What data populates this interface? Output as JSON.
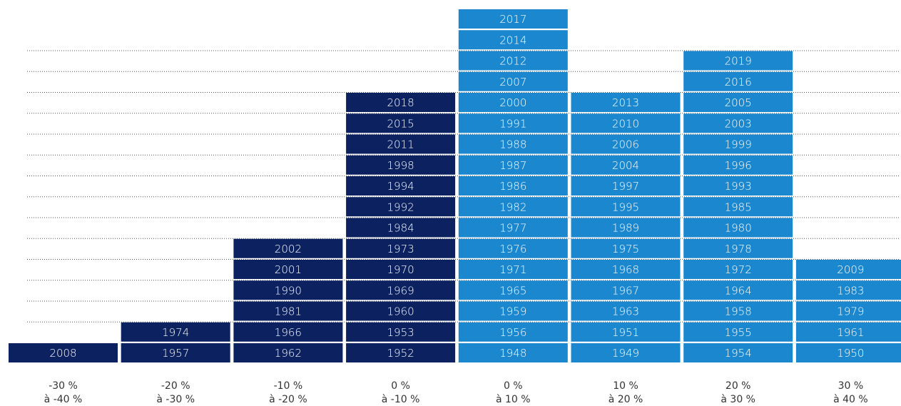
{
  "chart_data": {
    "type": "year-blocks",
    "categories": [
      [
        "-30 %",
        "à -40 %"
      ],
      [
        "-20 %",
        "à -30 %"
      ],
      [
        "-10 %",
        "à -20 %"
      ],
      [
        "0 %",
        "à -10 %"
      ],
      [
        "0 %",
        "à 10 %"
      ],
      [
        "10 %",
        "à 20 %"
      ],
      [
        "20 %",
        "à 30 %"
      ],
      [
        "30 %",
        "à 40 %"
      ]
    ],
    "columns": [
      {
        "color": "#0b2160",
        "years": [
          2008
        ]
      },
      {
        "color": "#0b2160",
        "years": [
          1957,
          1974
        ]
      },
      {
        "color": "#0b2160",
        "years": [
          1962,
          1966,
          1981,
          1990,
          2001,
          2002
        ]
      },
      {
        "color": "#0b2160",
        "years": [
          1952,
          1953,
          1960,
          1969,
          1970,
          1973,
          1984,
          1992,
          1994,
          1998,
          2011,
          2015,
          2018
        ]
      },
      {
        "color": "#1b87cf",
        "years": [
          1948,
          1956,
          1959,
          1965,
          1971,
          1976,
          1977,
          1982,
          1986,
          1987,
          1988,
          1991,
          2000,
          2007,
          2012,
          2014,
          2017
        ]
      },
      {
        "color": "#1b87cf",
        "years": [
          1949,
          1951,
          1963,
          1967,
          1968,
          1975,
          1989,
          1995,
          1997,
          2004,
          2006,
          2010,
          2013
        ]
      },
      {
        "color": "#1b87cf",
        "years": [
          1954,
          1955,
          1958,
          1964,
          1972,
          1978,
          1980,
          1985,
          1993,
          1996,
          1999,
          2003,
          2005,
          2016,
          2019
        ]
      },
      {
        "color": "#1b87cf",
        "years": [
          1950,
          1961,
          1979,
          1983,
          2009
        ]
      }
    ]
  }
}
